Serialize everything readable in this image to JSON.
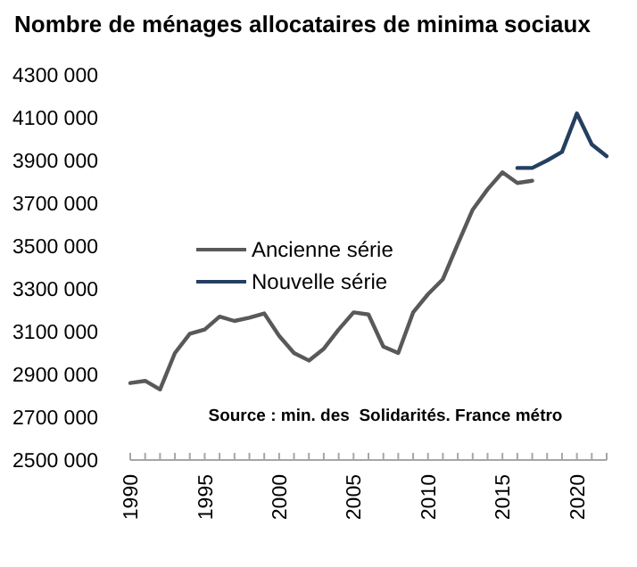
{
  "chart_data": {
    "type": "line",
    "title": "Nombre de ménages allocataires de minima sociaux",
    "annotations": [
      "Source : min. des  Solidarités. France métro"
    ],
    "xlim": [
      1990,
      2022
    ],
    "xticks": [
      1990,
      {
        "value": 1991,
        "label": null
      },
      {
        "value": 1992,
        "label": null
      },
      {
        "value": 1993,
        "label": null
      },
      {
        "value": 1994,
        "label": null
      },
      1995,
      {
        "value": 1996,
        "label": null
      },
      {
        "value": 1997,
        "label": null
      },
      {
        "value": 1998,
        "label": null
      },
      {
        "value": 1999,
        "label": null
      },
      2000,
      {
        "value": 2001,
        "label": null
      },
      {
        "value": 2002,
        "label": null
      },
      {
        "value": 2003,
        "label": null
      },
      {
        "value": 2004,
        "label": null
      },
      2005,
      {
        "value": 2006,
        "label": null
      },
      {
        "value": 2007,
        "label": null
      },
      {
        "value": 2008,
        "label": null
      },
      {
        "value": 2009,
        "label": null
      },
      2010,
      {
        "value": 2011,
        "label": null
      },
      {
        "value": 2012,
        "label": null
      },
      {
        "value": 2013,
        "label": null
      },
      {
        "value": 2014,
        "label": null
      },
      2015,
      {
        "value": 2016,
        "label": null
      },
      {
        "value": 2017,
        "label": null
      },
      {
        "value": 2018,
        "label": null
      },
      {
        "value": 2019,
        "label": null
      },
      2020,
      {
        "value": 2021,
        "label": null
      },
      {
        "value": 2022,
        "label": null
      }
    ],
    "ylim": [
      2500000,
      4300000
    ],
    "yticks": [
      {
        "value": 2500000,
        "label": "2500 000"
      },
      {
        "value": 2700000,
        "label": "2700 000"
      },
      {
        "value": 2900000,
        "label": "2900 000"
      },
      {
        "value": 3100000,
        "label": "3100 000"
      },
      {
        "value": 3300000,
        "label": "3300 000"
      },
      {
        "value": 3500000,
        "label": "3500 000"
      },
      {
        "value": 3700000,
        "label": "3700 000"
      },
      {
        "value": 3900000,
        "label": "3900 000"
      },
      {
        "value": 4100000,
        "label": "4100 000"
      },
      {
        "value": 4300000,
        "label": "4300 000"
      }
    ],
    "grid": false,
    "legend": "left",
    "marker": "none",
    "line_style": "solid",
    "series": [
      {
        "name": "Ancienne série",
        "color": "#595959",
        "x": [
          1990,
          1991,
          1992,
          1993,
          1994,
          1995,
          1996,
          1997,
          1998,
          1999,
          2000,
          2001,
          2002,
          2003,
          2004,
          2005,
          2006,
          2007,
          2008,
          2009,
          2010,
          2011,
          2012,
          2013,
          2014,
          2015,
          2016,
          2017
        ],
        "values": [
          2860000,
          2870000,
          2830000,
          3000000,
          3090000,
          3110000,
          3170000,
          3150000,
          3165000,
          3185000,
          3080000,
          3000000,
          2965000,
          3020000,
          3110000,
          3190000,
          3180000,
          3030000,
          3000000,
          3190000,
          3275000,
          3345000,
          3510000,
          3670000,
          3765000,
          3845000,
          3795000,
          3805000
        ]
      },
      {
        "name": "Nouvelle série",
        "color": "#243f60",
        "x": [
          2016,
          2017,
          2018,
          2019,
          2020,
          2021,
          2022
        ],
        "values": [
          3865000,
          3865000,
          3900000,
          3940000,
          4120000,
          3975000,
          3920000
        ]
      }
    ]
  }
}
